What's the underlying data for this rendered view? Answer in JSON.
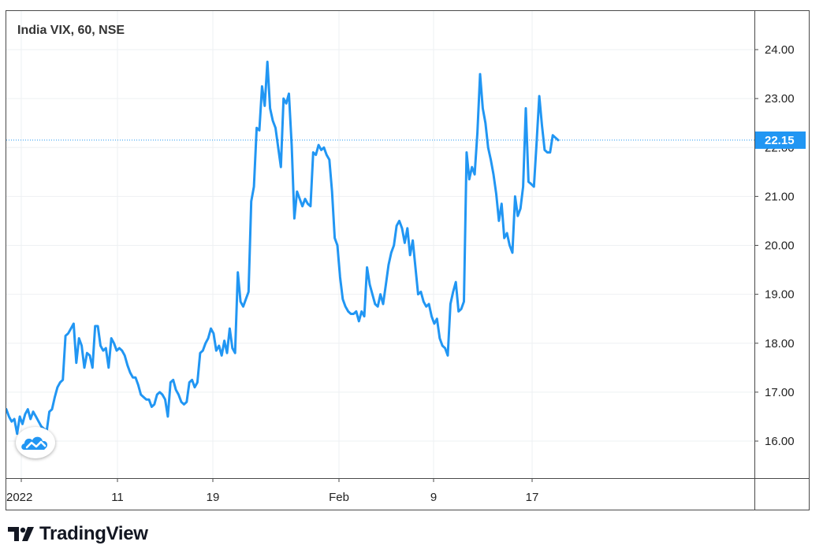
{
  "chart_data": {
    "type": "line",
    "title": "India VIX, 60, NSE",
    "x_tick_labels": [
      "2022",
      "11",
      "19",
      "Feb",
      "9",
      "17"
    ],
    "y_tick_labels": [
      "16.00",
      "17.00",
      "18.00",
      "19.00",
      "20.00",
      "21.00",
      "22.00",
      "23.00",
      "24.00"
    ],
    "ylim": [
      15.2,
      24.8
    ],
    "last_value": 22.15,
    "last_value_label": "22.15",
    "series": [
      {
        "color": "#2196f3",
        "values": [
          16.65,
          16.5,
          16.4,
          16.45,
          16.15,
          16.5,
          16.35,
          16.55,
          16.65,
          16.45,
          16.6,
          16.5,
          16.4,
          16.3,
          16.25,
          16.2,
          16.6,
          16.65,
          16.9,
          17.1,
          17.2,
          17.25,
          18.15,
          18.2,
          18.3,
          18.4,
          17.6,
          18.1,
          17.95,
          17.5,
          17.8,
          17.75,
          17.5,
          18.35,
          18.35,
          17.95,
          17.85,
          17.9,
          17.5,
          18.1,
          18.0,
          17.85,
          17.9,
          17.85,
          17.75,
          17.55,
          17.4,
          17.3,
          17.3,
          17.15,
          16.95,
          16.9,
          16.85,
          16.85,
          16.7,
          16.75,
          16.95,
          17.0,
          16.95,
          16.85,
          16.5,
          17.2,
          17.25,
          17.05,
          16.95,
          16.8,
          16.75,
          16.8,
          17.2,
          17.25,
          17.1,
          17.2,
          17.8,
          17.85,
          18.0,
          18.1,
          18.3,
          18.2,
          17.85,
          17.95,
          17.75,
          18.05,
          17.8,
          18.3,
          17.9,
          17.8,
          19.45,
          18.85,
          18.75,
          18.9,
          19.05,
          20.9,
          21.2,
          22.4,
          22.35,
          23.25,
          22.85,
          23.75,
          22.8,
          22.55,
          22.4,
          22.0,
          21.6,
          23.0,
          22.9,
          23.1,
          22.05,
          20.55,
          21.1,
          20.95,
          20.8,
          20.95,
          20.85,
          20.8,
          21.9,
          21.85,
          22.05,
          21.95,
          22.0,
          21.85,
          21.75,
          21.1,
          20.15,
          20.0,
          19.35,
          18.9,
          18.75,
          18.65,
          18.6,
          18.6,
          18.65,
          18.45,
          18.65,
          18.55,
          19.55,
          19.2,
          19.0,
          18.8,
          18.75,
          19.0,
          18.8,
          19.2,
          19.6,
          19.85,
          20.0,
          20.4,
          20.5,
          20.35,
          20.05,
          20.35,
          19.8,
          20.1,
          19.55,
          19.0,
          19.05,
          18.85,
          18.75,
          18.8,
          18.55,
          18.4,
          18.5,
          18.1,
          17.95,
          17.9,
          17.75,
          18.8,
          19.05,
          19.25,
          18.65,
          18.7,
          18.85,
          21.9,
          21.35,
          21.6,
          21.45,
          22.3,
          23.5,
          22.8,
          22.5,
          22.0,
          21.75,
          21.45,
          21.05,
          20.5,
          20.85,
          20.15,
          20.25,
          20.0,
          19.85,
          21.0,
          20.6,
          20.75,
          21.2,
          22.8,
          21.3,
          21.25,
          21.2,
          22.1,
          23.05,
          22.45,
          21.95,
          21.9,
          21.9,
          22.25,
          22.2,
          22.15
        ]
      }
    ]
  },
  "branding": {
    "name": "TradingView"
  }
}
